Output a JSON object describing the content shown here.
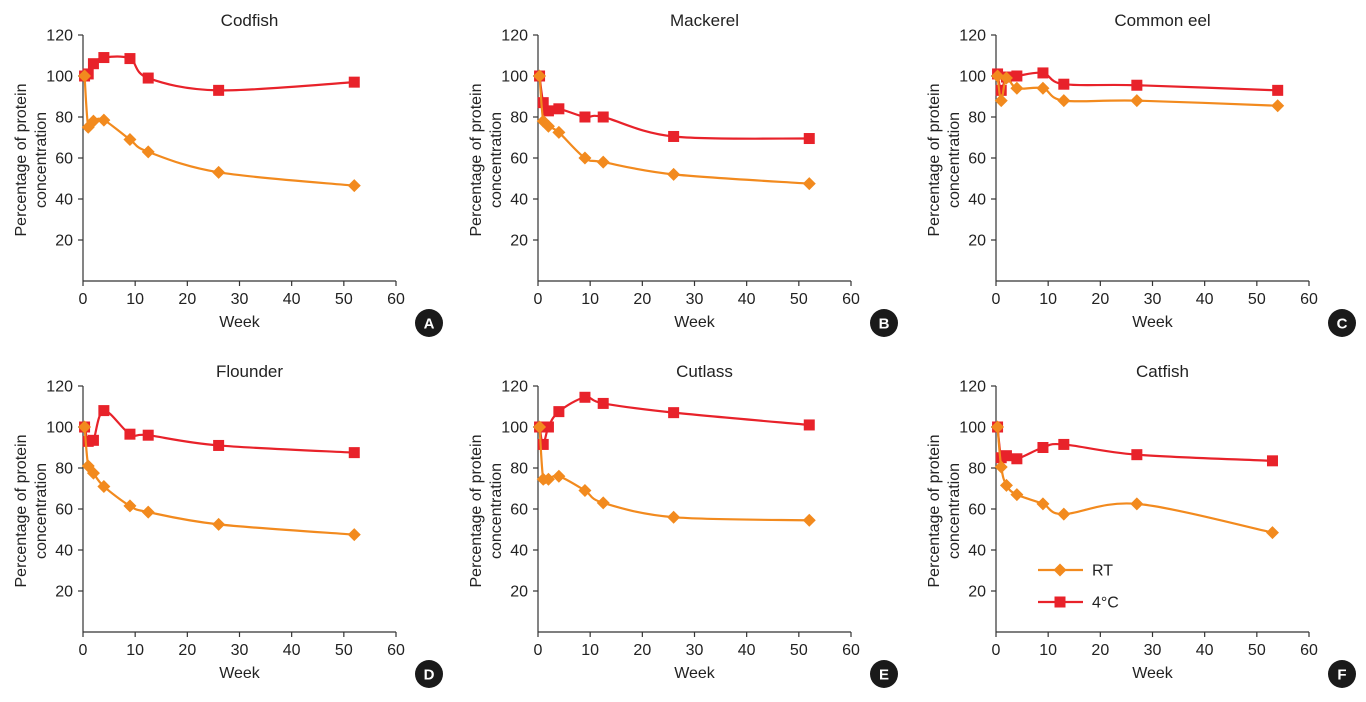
{
  "colors": {
    "rt": "#f28a1e",
    "c4": "#e8222a",
    "axis": "#333333",
    "badge": "#1a1a1a"
  },
  "legend": {
    "items": [
      {
        "key": "rt",
        "label": "RT"
      },
      {
        "key": "c4",
        "label": "4°C"
      }
    ]
  },
  "chart_data": [
    {
      "type": "line",
      "panel_label": "A",
      "title": "Codfish",
      "xlabel": "Week",
      "ylabel": [
        "Percentage of protein",
        "concentration"
      ],
      "xlim": [
        0,
        60
      ],
      "ylim": [
        0,
        120
      ],
      "xticks": [
        0,
        10,
        20,
        30,
        40,
        50,
        60
      ],
      "yticks": [
        20,
        40,
        60,
        80,
        100,
        120
      ],
      "series": [
        {
          "key": "rt",
          "x": [
            0.3,
            1,
            2,
            4,
            9,
            12.5,
            26,
            52
          ],
          "y": [
            100,
            75,
            78,
            78.5,
            69,
            63,
            53,
            46.5
          ]
        },
        {
          "key": "c4",
          "x": [
            0.3,
            1,
            2,
            4,
            9,
            12.5,
            26,
            52
          ],
          "y": [
            100,
            101,
            106,
            109,
            108.5,
            99,
            93,
            97
          ]
        }
      ]
    },
    {
      "type": "line",
      "panel_label": "B",
      "title": "Mackerel",
      "xlabel": "Week",
      "ylabel": [
        "Percentage of protein",
        "concentration"
      ],
      "xlim": [
        0,
        60
      ],
      "ylim": [
        0,
        120
      ],
      "xticks": [
        0,
        10,
        20,
        30,
        40,
        50,
        60
      ],
      "yticks": [
        20,
        40,
        60,
        80,
        100,
        120
      ],
      "series": [
        {
          "key": "rt",
          "x": [
            0.3,
            1,
            2,
            4,
            9,
            12.5,
            26,
            52
          ],
          "y": [
            100,
            78,
            75.5,
            72.5,
            60,
            58,
            52,
            47.5
          ]
        },
        {
          "key": "c4",
          "x": [
            0.3,
            1,
            2,
            4,
            9,
            12.5,
            26,
            52
          ],
          "y": [
            100,
            87,
            83,
            84,
            80,
            80,
            70.5,
            69.5
          ]
        }
      ]
    },
    {
      "type": "line",
      "panel_label": "C",
      "title": "Common eel",
      "xlabel": "Week",
      "ylabel": [
        "Percentage of protein",
        "concentration"
      ],
      "xlim": [
        0,
        60
      ],
      "ylim": [
        0,
        120
      ],
      "xticks": [
        0,
        10,
        20,
        30,
        40,
        50,
        60
      ],
      "yticks": [
        20,
        40,
        60,
        80,
        100,
        120
      ],
      "series": [
        {
          "key": "rt",
          "x": [
            0.3,
            1,
            2,
            4,
            9,
            13,
            27,
            54
          ],
          "y": [
            100,
            88,
            99,
            94,
            94,
            88,
            88,
            85.5
          ]
        },
        {
          "key": "c4",
          "x": [
            0.3,
            1,
            2,
            4,
            9,
            13,
            27,
            54
          ],
          "y": [
            101,
            93,
            99.5,
            100,
            101.5,
            96,
            95.5,
            93
          ]
        }
      ]
    },
    {
      "type": "line",
      "panel_label": "D",
      "title": "Flounder",
      "xlabel": "Week",
      "ylabel": [
        "Percentage of protein",
        "concentration"
      ],
      "xlim": [
        0,
        60
      ],
      "ylim": [
        0,
        120
      ],
      "xticks": [
        0,
        10,
        20,
        30,
        40,
        50,
        60
      ],
      "yticks": [
        20,
        40,
        60,
        80,
        100,
        120
      ],
      "series": [
        {
          "key": "rt",
          "x": [
            0.3,
            1,
            2,
            4,
            9,
            12.5,
            26,
            52
          ],
          "y": [
            100,
            81,
            77.5,
            71,
            61.5,
            58.5,
            52.5,
            47.5
          ]
        },
        {
          "key": "c4",
          "x": [
            0.3,
            1,
            2,
            4,
            9,
            12.5,
            26,
            52
          ],
          "y": [
            100,
            93,
            93.5,
            108,
            96.5,
            96,
            91,
            87.5
          ]
        }
      ]
    },
    {
      "type": "line",
      "panel_label": "E",
      "title": "Cutlass",
      "xlabel": "Week",
      "ylabel": [
        "Percentage of protein",
        "concentration"
      ],
      "xlim": [
        0,
        60
      ],
      "ylim": [
        0,
        120
      ],
      "xticks": [
        0,
        10,
        20,
        30,
        40,
        50,
        60
      ],
      "yticks": [
        20,
        40,
        60,
        80,
        100,
        120
      ],
      "series": [
        {
          "key": "rt",
          "x": [
            0.3,
            1,
            2,
            4,
            9,
            12.5,
            26,
            52
          ],
          "y": [
            100,
            74.5,
            74.5,
            76,
            69,
            63,
            56,
            54.5
          ]
        },
        {
          "key": "c4",
          "x": [
            0.3,
            1,
            2,
            4,
            9,
            12.5,
            26,
            52
          ],
          "y": [
            100,
            91.5,
            100,
            107.5,
            114.5,
            111.5,
            107,
            101
          ]
        }
      ]
    },
    {
      "type": "line",
      "panel_label": "F",
      "title": "Catfish",
      "xlabel": "Week",
      "ylabel": [
        "Percentage of protein",
        "concentration"
      ],
      "xlim": [
        0,
        60
      ],
      "ylim": [
        0,
        120
      ],
      "xticks": [
        0,
        10,
        20,
        30,
        40,
        50,
        60
      ],
      "yticks": [
        20,
        40,
        60,
        80,
        100,
        120
      ],
      "legend": "lower-left",
      "series": [
        {
          "key": "rt",
          "x": [
            0.3,
            1,
            2,
            4,
            9,
            13,
            27,
            53
          ],
          "y": [
            100,
            80.5,
            71.5,
            67,
            62.5,
            57.5,
            62.5,
            48.5
          ]
        },
        {
          "key": "c4",
          "x": [
            0.3,
            1,
            2,
            4,
            9,
            13,
            27,
            53
          ],
          "y": [
            100,
            85,
            86,
            84.5,
            90,
            91.5,
            86.5,
            83.5
          ]
        }
      ]
    }
  ]
}
